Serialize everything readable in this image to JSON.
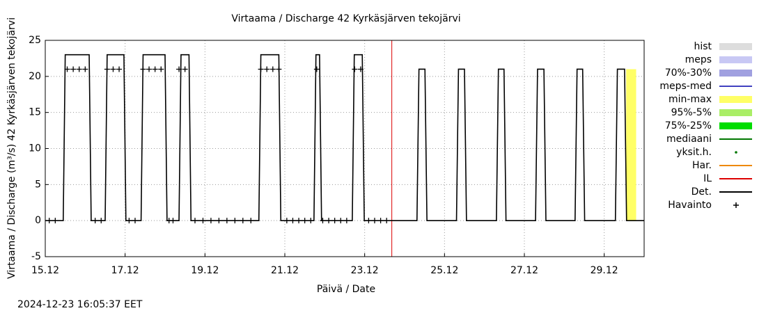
{
  "chart_data": {
    "type": "line",
    "title": "Virtaama / Discharge  42 Kyrkäsjärven tekojärvi",
    "x_label": "Päivä / Date",
    "y_label": "Virtaama / Discharge (m³/s)  42 Kyrkäsjärven tekojärvi",
    "timestamp": "2024-12-23 16:05:37 EET",
    "xlim": [
      0,
      15
    ],
    "ylim": [
      -5,
      25
    ],
    "xticks": [
      {
        "value": 0,
        "label": "15.12"
      },
      {
        "value": 2,
        "label": "17.12"
      },
      {
        "value": 4,
        "label": "19.12"
      },
      {
        "value": 6,
        "label": "21.12"
      },
      {
        "value": 8,
        "label": "23.12"
      },
      {
        "value": 10,
        "label": "25.12"
      },
      {
        "value": 12,
        "label": "27.12"
      },
      {
        "value": 14,
        "label": "29.12"
      }
    ],
    "yticks": [
      -5,
      0,
      5,
      10,
      15,
      20,
      25
    ],
    "grid": true,
    "now_x": 8.68,
    "band": {
      "name": "min-max",
      "color": "#ffff66",
      "x": [
        14.55,
        14.8
      ],
      "low": [
        0,
        0
      ],
      "high": [
        21,
        21
      ]
    },
    "series": [
      {
        "name": "Det.",
        "color": "#000000",
        "x": [
          0,
          0.45,
          0.5,
          1.1,
          1.15,
          1.5,
          1.55,
          1.97,
          2.02,
          2.4,
          2.45,
          3.0,
          3.05,
          3.35,
          3.4,
          3.6,
          3.65,
          5.35,
          5.4,
          5.85,
          5.9,
          6.73,
          6.78,
          6.87,
          6.92,
          7.69,
          7.74,
          7.94,
          7.99,
          9.31,
          9.36,
          9.51,
          9.56,
          10.3,
          10.35,
          10.5,
          10.55,
          11.3,
          11.35,
          11.49,
          11.54,
          12.28,
          12.33,
          12.49,
          12.54,
          13.27,
          13.32,
          13.46,
          13.51,
          14.28,
          14.33,
          14.51,
          14.56,
          15
        ],
        "values": [
          0,
          0,
          23,
          23,
          0,
          0,
          23,
          23,
          0,
          0,
          23,
          23,
          0,
          0,
          23,
          23,
          0,
          0,
          23,
          23,
          0,
          0,
          23,
          23,
          0,
          0,
          23,
          23,
          0,
          0,
          21,
          21,
          0,
          0,
          21,
          21,
          0,
          0,
          21,
          21,
          0,
          0,
          21,
          21,
          0,
          0,
          21,
          21,
          0,
          0,
          21,
          21,
          0,
          0
        ]
      },
      {
        "name": "Havainto",
        "color": "#000000",
        "x": [
          0.1,
          0.25,
          0.55,
          0.7,
          0.85,
          1.0,
          1.25,
          1.4,
          1.55,
          1.7,
          1.85,
          2.1,
          2.25,
          2.45,
          2.6,
          2.75,
          2.9,
          3.1,
          3.2,
          3.35,
          3.5,
          3.75,
          3.95,
          4.15,
          4.35,
          4.55,
          4.75,
          4.95,
          5.15,
          5.4,
          5.55,
          5.7,
          5.85,
          6.05,
          6.2,
          6.35,
          6.5,
          6.65,
          6.8,
          6.95,
          7.1,
          7.25,
          7.4,
          7.55,
          7.75,
          7.9,
          8.1,
          8.25,
          8.4,
          8.55
        ],
        "values": [
          0,
          0,
          21,
          21,
          21,
          21,
          0,
          0,
          21,
          21,
          21,
          0,
          0,
          21,
          21,
          21,
          21,
          0,
          0,
          21,
          21,
          0,
          0,
          0,
          0,
          0,
          0,
          0,
          0,
          21,
          21,
          21,
          21,
          0,
          0,
          0,
          0,
          0,
          21,
          0,
          0,
          0,
          0,
          0,
          21,
          21,
          0,
          0,
          0,
          0
        ]
      }
    ],
    "legend": [
      {
        "name": "hist",
        "color": "#dddddd",
        "style": "block"
      },
      {
        "name": "meps",
        "color": "#c8c8f4",
        "style": "block"
      },
      {
        "name": "70%-30%",
        "color": "#a0a0e0",
        "style": "block"
      },
      {
        "name": "meps-med",
        "color": "#4040c0",
        "style": "line"
      },
      {
        "name": "min-max",
        "color": "#ffff66",
        "style": "block"
      },
      {
        "name": "95%-5%",
        "color": "#aaee66",
        "style": "block"
      },
      {
        "name": "75%-25%",
        "color": "#00dd00",
        "style": "block"
      },
      {
        "name": "mediaani",
        "color": "#007700",
        "style": "line"
      },
      {
        "name": "yksit.h.",
        "color": "#007700",
        "style": "dot"
      },
      {
        "name": "Har.",
        "color": "#ee8800",
        "style": "line"
      },
      {
        "name": "IL",
        "color": "#dd0000",
        "style": "line"
      },
      {
        "name": "Det.",
        "color": "#000000",
        "style": "line"
      },
      {
        "name": "Havainto",
        "color": "#000000",
        "style": "plus"
      }
    ]
  }
}
